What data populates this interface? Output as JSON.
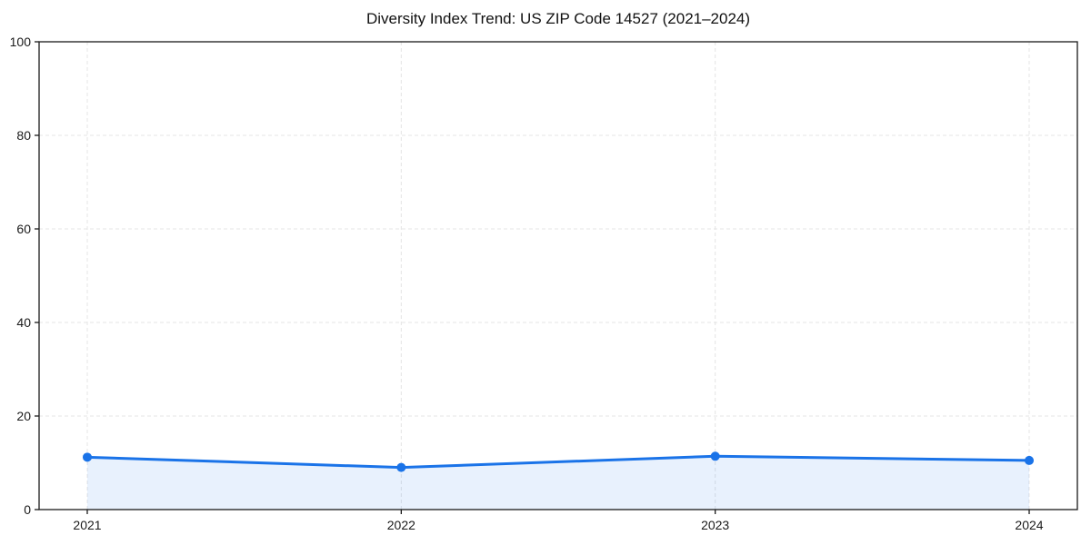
{
  "chart_data": {
    "type": "line",
    "title": "Diversity Index Trend: US ZIP Code 14527 (2021–2024)",
    "x": [
      2021,
      2022,
      2023,
      2024
    ],
    "x_tick_labels": [
      "2021",
      "2022",
      "2023",
      "2024"
    ],
    "values": [
      11.2,
      9.0,
      11.4,
      10.5
    ],
    "xlabel": "",
    "ylabel": "",
    "ylim": [
      0,
      100
    ],
    "y_ticks": [
      0,
      20,
      40,
      60,
      80,
      100
    ],
    "grid": true,
    "legend": false,
    "marker": "circle",
    "line_color": "#1a73e8",
    "fill_color": "rgba(26,115,232,0.10)",
    "axis_color": "#1a1a1a",
    "grid_color": "#e4e4e4",
    "background_color": "#ffffff"
  }
}
